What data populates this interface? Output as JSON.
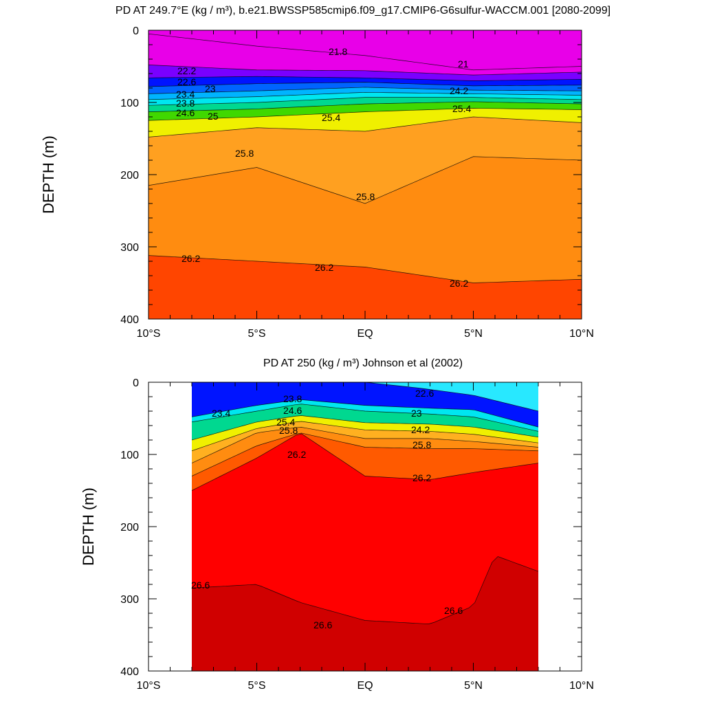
{
  "chart_data": [
    {
      "type": "heatmap",
      "plot": "contour",
      "title": "PD AT 249.7°E (kg / m³), b.e21.BWSSP585cmip6.f09_g17.CMIP6-G6sulfur-WACCM.001 [2080-2099]",
      "xlabel": "",
      "ylabel": "DEPTH (m)",
      "x_ticks": [
        "10°S",
        "5°S",
        "EQ",
        "5°N",
        "10°N"
      ],
      "x_tick_values": [
        -10,
        -5,
        0,
        5,
        10
      ],
      "y_ticks": [
        "0",
        "100",
        "200",
        "300",
        "400"
      ],
      "y_tick_values": [
        0,
        100,
        200,
        300,
        400
      ],
      "xlim": [
        -10,
        10
      ],
      "ylim": [
        400,
        0
      ],
      "y_inverted": true,
      "grid": false,
      "data_extent": [
        -10,
        10
      ],
      "isopycnals": [
        {
          "value": 21.8,
          "color": "#E800E8",
          "depths": [
            [
              -10,
              5
            ],
            [
              -5,
              22
            ],
            [
              0,
              35
            ],
            [
              5,
              55
            ],
            [
              10,
              50
            ]
          ]
        },
        {
          "value": 22.2,
          "color": "#7A00FF",
          "depths": [
            [
              -10,
              48
            ],
            [
              -5,
              55
            ],
            [
              0,
              56
            ],
            [
              5,
              62
            ],
            [
              10,
              58
            ]
          ]
        },
        {
          "value": 22.6,
          "color": "#0014FF",
          "depths": [
            [
              -10,
              66
            ],
            [
              -5,
              64
            ],
            [
              0,
              66
            ],
            [
              5,
              70
            ],
            [
              10,
              68
            ]
          ]
        },
        {
          "value": 23.0,
          "color": "#0064FF",
          "depths": [
            [
              -10,
              78
            ],
            [
              -5,
              74
            ],
            [
              0,
              72
            ],
            [
              5,
              77
            ],
            [
              10,
              76
            ]
          ]
        },
        {
          "value": 23.4,
          "color": "#00B4FF",
          "depths": [
            [
              -10,
              88
            ],
            [
              -5,
              84
            ],
            [
              0,
              79
            ],
            [
              5,
              83
            ],
            [
              10,
              84
            ]
          ]
        },
        {
          "value": 23.8,
          "color": "#00E6F0",
          "depths": [
            [
              -10,
              96
            ],
            [
              -5,
              92
            ],
            [
              0,
              86
            ],
            [
              5,
              88
            ],
            [
              10,
              90
            ]
          ]
        },
        {
          "value": 24.2,
          "color": "#00D890",
          "depths": [
            [
              -10,
              104
            ],
            [
              -5,
              100
            ],
            [
              0,
              93
            ],
            [
              5,
              93
            ],
            [
              10,
              96
            ]
          ]
        },
        {
          "value": 24.6,
          "color": "#40D800",
          "depths": [
            [
              -10,
              113
            ],
            [
              -5,
              109
            ],
            [
              0,
              102
            ],
            [
              5,
              99
            ],
            [
              10,
              102
            ]
          ]
        },
        {
          "value": 25.0,
          "color": "#F0F000",
          "depths": [
            [
              -10,
              125
            ],
            [
              -5,
              120
            ],
            [
              0,
              113
            ],
            [
              5,
              108
            ],
            [
              10,
              110
            ]
          ]
        },
        {
          "value": 25.4,
          "color": "#FFA020",
          "depths": [
            [
              -10,
              148
            ],
            [
              -5,
              135
            ],
            [
              0,
              140
            ],
            [
              5,
              120
            ],
            [
              10,
              128
            ]
          ]
        },
        {
          "value": 25.8,
          "color": "#FF8C10",
          "depths": [
            [
              -10,
              215
            ],
            [
              -5,
              190
            ],
            [
              0,
              240
            ],
            [
              5,
              175
            ],
            [
              10,
              180
            ]
          ]
        },
        {
          "value": 26.2,
          "color": "#FF4500",
          "depths": [
            [
              -10,
              312
            ],
            [
              -5,
              320
            ],
            [
              0,
              328
            ],
            [
              5,
              350
            ],
            [
              10,
              345
            ]
          ]
        }
      ],
      "labels": [
        "21.8",
        "22.2",
        "22.6",
        "23",
        "23.4",
        "23.8",
        "24.6",
        "25",
        "25.4",
        "25.8",
        "25.8",
        "26.2",
        "26.2",
        "26.2",
        "21",
        "24.2",
        "25.4"
      ]
    },
    {
      "type": "heatmap",
      "plot": "contour",
      "title": "PD AT 250 (kg / m³) Johnson et al (2002)",
      "xlabel": "",
      "ylabel": "DEPTH (m)",
      "x_ticks": [
        "10°S",
        "5°S",
        "EQ",
        "5°N",
        "10°N"
      ],
      "x_tick_values": [
        -10,
        -5,
        0,
        5,
        10
      ],
      "y_ticks": [
        "0",
        "100",
        "200",
        "300",
        "400"
      ],
      "y_tick_values": [
        0,
        100,
        200,
        300,
        400
      ],
      "xlim": [
        -10,
        10
      ],
      "ylim": [
        400,
        0
      ],
      "y_inverted": true,
      "grid": false,
      "data_extent": [
        -8,
        8
      ],
      "isopycnals": [
        {
          "value": 22.6,
          "color": "#0014FF",
          "depths": [
            [
              -8,
              0
            ],
            [
              0,
              0
            ],
            [
              2.5,
              8
            ],
            [
              5,
              18
            ],
            [
              8,
              40
            ]
          ]
        },
        {
          "value": 23.4,
          "color": "#00E6F0",
          "depths": [
            [
              -8,
              48
            ],
            [
              -5,
              32
            ],
            [
              -3,
              24
            ],
            [
              0,
              32
            ],
            [
              3,
              36
            ],
            [
              5,
              38
            ],
            [
              8,
              62
            ]
          ]
        },
        {
          "value": 23.8,
          "color": "#00D890",
          "depths": [
            [
              -8,
              55
            ],
            [
              -5,
              40
            ],
            [
              -3,
              30
            ],
            [
              0,
              40
            ],
            [
              3,
              44
            ],
            [
              5,
              48
            ],
            [
              8,
              68
            ]
          ]
        },
        {
          "value": 24.6,
          "color": "#F0F000",
          "depths": [
            [
              -8,
              80
            ],
            [
              -5,
              55
            ],
            [
              -3,
              46
            ],
            [
              0,
              56
            ],
            [
              3,
              58
            ],
            [
              5,
              62
            ],
            [
              8,
              76
            ]
          ]
        },
        {
          "value": 25.0,
          "color": "#FFB020",
          "depths": [
            [
              -8,
              95
            ],
            [
              -5,
              64
            ],
            [
              -3,
              54
            ],
            [
              0,
              66
            ],
            [
              3,
              68
            ],
            [
              5,
              72
            ],
            [
              8,
              84
            ]
          ]
        },
        {
          "value": 25.4,
          "color": "#FF8C10",
          "depths": [
            [
              -8,
              112
            ],
            [
              -5,
              70
            ],
            [
              -3,
              62
            ],
            [
              0,
              78
            ],
            [
              3,
              78
            ],
            [
              5,
              82
            ],
            [
              8,
              90
            ]
          ]
        },
        {
          "value": 25.8,
          "color": "#FF5A00",
          "depths": [
            [
              -8,
              130
            ],
            [
              -5,
              88
            ],
            [
              -3,
              70
            ],
            [
              0,
              90
            ],
            [
              3,
              92
            ],
            [
              5,
              92
            ],
            [
              8,
              95
            ]
          ]
        },
        {
          "value": 26.2,
          "color": "#FF0000",
          "depths": [
            [
              -8,
              150
            ],
            [
              -5,
              105
            ],
            [
              -3,
              70
            ],
            [
              0,
              130
            ],
            [
              3,
              135
            ],
            [
              5,
              125
            ],
            [
              8,
              112
            ]
          ]
        },
        {
          "value": 26.6,
          "color": "#D00000",
          "depths": [
            [
              -8,
              285
            ],
            [
              -5,
              280
            ],
            [
              -3,
              305
            ],
            [
              0,
              330
            ],
            [
              3,
              335
            ],
            [
              5,
              310
            ],
            [
              6,
              240
            ],
            [
              8,
              262
            ]
          ]
        }
      ],
      "labels": [
        "23.4",
        "23.8",
        "24.6",
        "25.4",
        "25.8",
        "26.2",
        "26.2",
        "26.6",
        "26.6",
        "26.6",
        "22.6",
        "23",
        "24.2",
        "25.8"
      ]
    }
  ]
}
